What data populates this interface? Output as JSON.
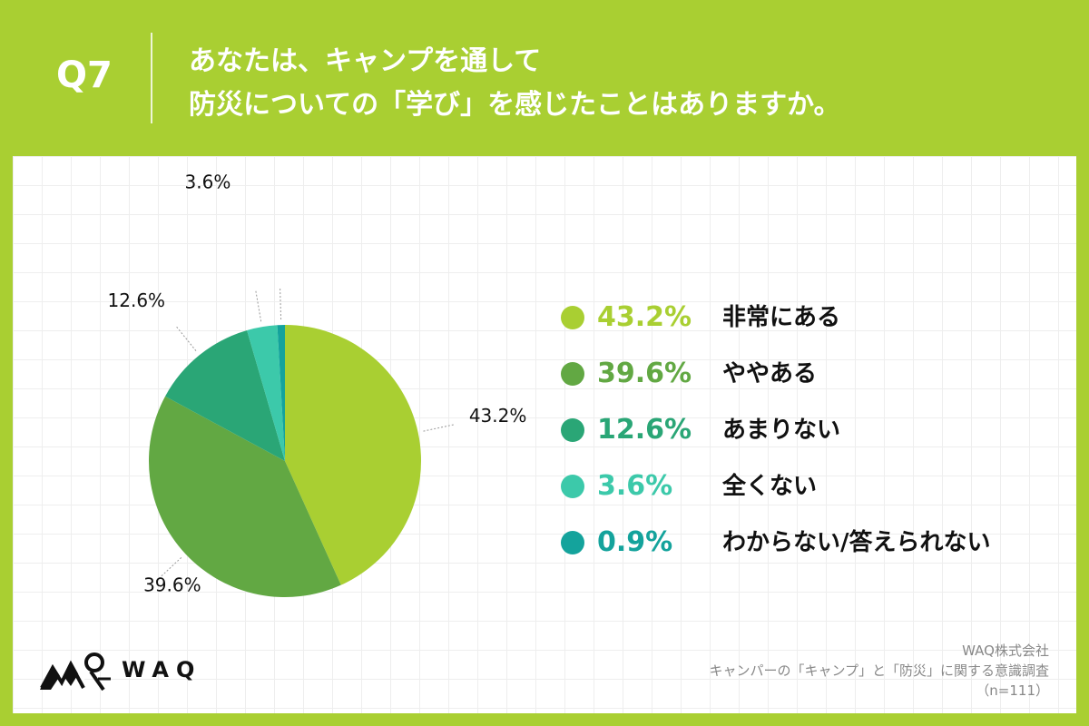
{
  "header": {
    "question_number": "Q7",
    "question_line1": "あなたは、キャンプを通して",
    "question_line2": "防災についての「学び」を感じたことはありますか。"
  },
  "chart_data": {
    "type": "pie",
    "categories": [
      "非常にある",
      "ややある",
      "あまりない",
      "全くない",
      "わからない/答えられない"
    ],
    "values": [
      43.2,
      39.6,
      12.6,
      3.6,
      0.9
    ],
    "value_labels": [
      "43.2%",
      "39.6%",
      "12.6%",
      "3.6%",
      "0.9%"
    ],
    "colors": [
      "#a9cf32",
      "#62a843",
      "#2aa676",
      "#3cc9aa",
      "#14a39c"
    ],
    "legend_placement": "right",
    "start": "top, clockwise"
  },
  "brand": {
    "logo_text": "WAQ",
    "logo_icon": "waq-mountain-logo-icon"
  },
  "footer": {
    "company": "WAQ株式会社",
    "survey": "キャンパーの「キャンプ」と「防災」に関する意識調査",
    "sample": "（n=111）"
  }
}
